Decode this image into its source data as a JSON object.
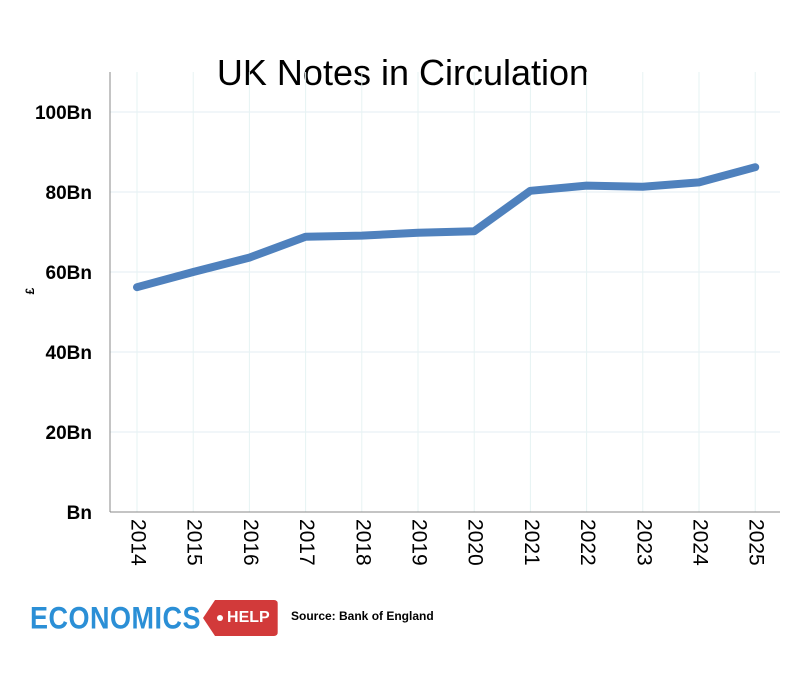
{
  "chart_data": {
    "type": "line",
    "title": "UK Notes in Circulation",
    "ylabel": "£",
    "xlabel": "",
    "categories": [
      "2014",
      "2015",
      "2016",
      "2017",
      "2018",
      "2019",
      "2020",
      "2021",
      "2022",
      "2023",
      "2024",
      "2025"
    ],
    "series": [
      {
        "values": [
          56.2,
          60.0,
          63.6,
          68.8,
          69.1,
          69.8,
          70.2,
          80.3,
          81.6,
          81.3,
          82.4,
          86.2
        ]
      }
    ],
    "ylim": [
      0,
      110
    ],
    "yticks": [
      0,
      20,
      40,
      60,
      80,
      100
    ],
    "ytick_labels": [
      "Bn",
      "20Bn",
      "40Bn",
      "60Bn",
      "80Bn",
      "100Bn"
    ],
    "grid": true,
    "line_color": "#4f81bd"
  },
  "logo": {
    "word": "ECONOMICS",
    "tag": "HELP"
  },
  "source": "Source: Bank of England"
}
